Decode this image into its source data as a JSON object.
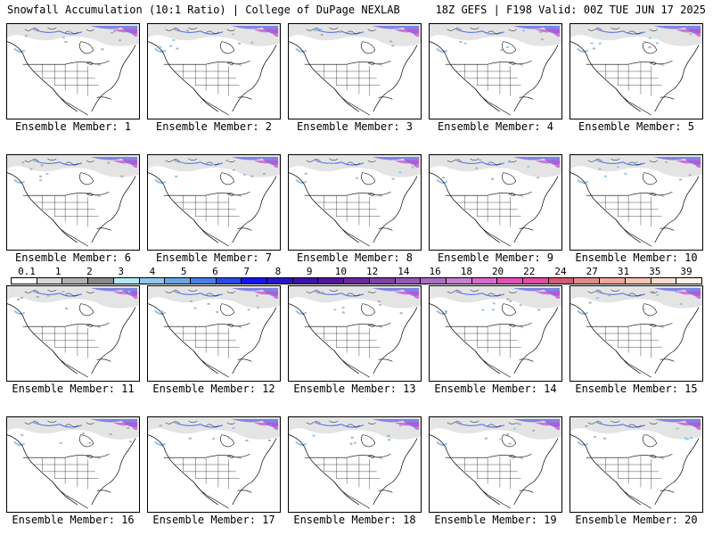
{
  "header": {
    "left": "Snowfall Accumulation (10:1 Ratio) | College of DuPage NEXLAB",
    "right": "18Z GEFS | F198 Valid: 00Z TUE JUN 17 2025"
  },
  "member_prefix": "Ensemble Member:",
  "members": [
    {
      "label": "Ensemble Member: 1"
    },
    {
      "label": "Ensemble Member: 2"
    },
    {
      "label": "Ensemble Member: 3"
    },
    {
      "label": "Ensemble Member: 4"
    },
    {
      "label": "Ensemble Member: 5"
    },
    {
      "label": "Ensemble Member: 6"
    },
    {
      "label": "Ensemble Member: 7"
    },
    {
      "label": "Ensemble Member: 8"
    },
    {
      "label": "Ensemble Member: 9"
    },
    {
      "label": "Ensemble Member: 10"
    },
    {
      "label": "Ensemble Member: 11"
    },
    {
      "label": "Ensemble Member: 12"
    },
    {
      "label": "Ensemble Member: 13"
    },
    {
      "label": "Ensemble Member: 14"
    },
    {
      "label": "Ensemble Member: 15"
    },
    {
      "label": "Ensemble Member: 16"
    },
    {
      "label": "Ensemble Member: 17"
    },
    {
      "label": "Ensemble Member: 18"
    },
    {
      "label": "Ensemble Member: 19"
    },
    {
      "label": "Ensemble Member: 20"
    }
  ],
  "legend": {
    "labels": [
      "0.1",
      "1",
      "2",
      "3",
      "4",
      "5",
      "6",
      "7",
      "8",
      "9",
      "10",
      "12",
      "14",
      "16",
      "18",
      "20",
      "22",
      "24",
      "27",
      "31",
      "35",
      "39"
    ],
    "colors": [
      "#ffffff",
      "#d6d6d6",
      "#b0b0b0",
      "#8a8a8a",
      "#b4e6f4",
      "#8ec8ee",
      "#6aa6e6",
      "#4a7ee6",
      "#2a4ae8",
      "#1414f0",
      "#2a14c8",
      "#3c14a8",
      "#52149a",
      "#6a289a",
      "#8040a6",
      "#9656b4",
      "#ac6cc2",
      "#c47ed0",
      "#d66ad0",
      "#e052b8",
      "#e04ca0",
      "#d45a78",
      "#e08a8a",
      "#eea8a0",
      "#f6c2b4",
      "#fcdcce",
      "#fff0e6"
    ]
  }
}
